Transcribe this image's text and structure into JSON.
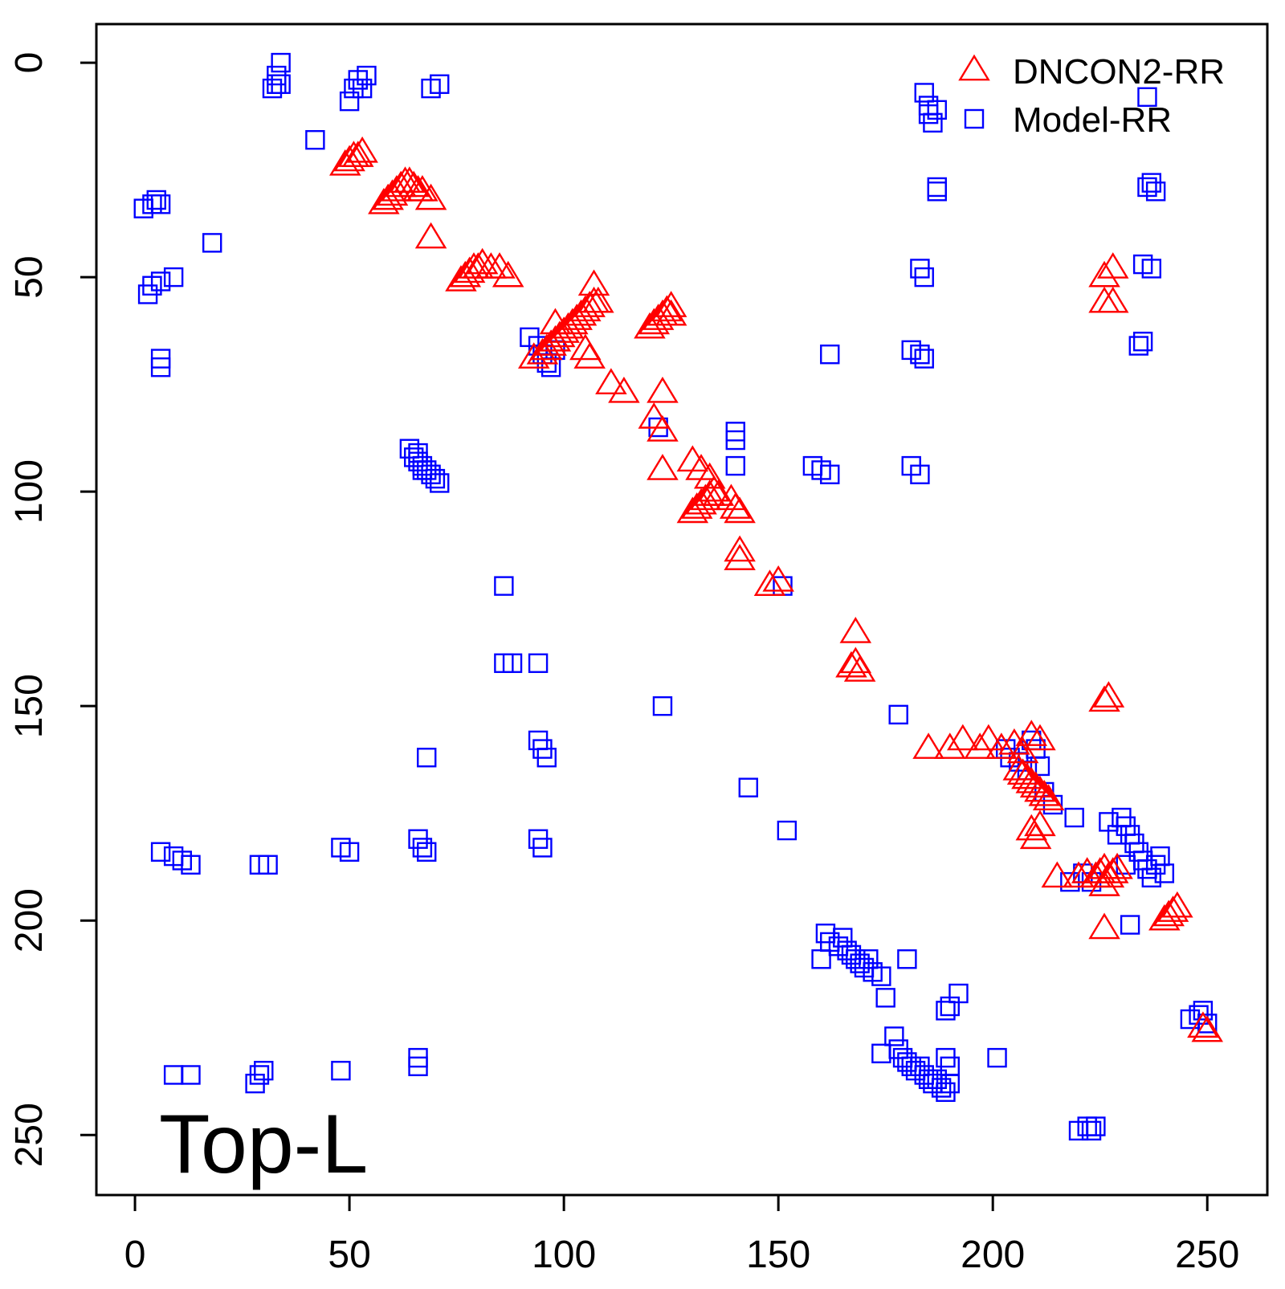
{
  "chart_data": {
    "type": "scatter",
    "title": "",
    "xlabel": "",
    "ylabel": "",
    "panel_label": "Top-L",
    "xlim": [
      -9,
      264
    ],
    "ylim": [
      -9,
      264
    ],
    "y_reversed": true,
    "x_ticks": [
      0,
      50,
      100,
      150,
      200,
      250
    ],
    "y_ticks": [
      0,
      50,
      100,
      150,
      200,
      250
    ],
    "grid": false,
    "legend_position": "top-right",
    "series": [
      {
        "name": "DNCON2-RR",
        "marker": "triangle",
        "color": "#ff0000",
        "points": [
          [
            49,
            24
          ],
          [
            50,
            23
          ],
          [
            51,
            22
          ],
          [
            52,
            22
          ],
          [
            53,
            21
          ],
          [
            58,
            33
          ],
          [
            59,
            32
          ],
          [
            60,
            31
          ],
          [
            61,
            30
          ],
          [
            62,
            29
          ],
          [
            63,
            28
          ],
          [
            64,
            28
          ],
          [
            65,
            29
          ],
          [
            66,
            30
          ],
          [
            67,
            30
          ],
          [
            69,
            32
          ],
          [
            69,
            41
          ],
          [
            76,
            51
          ],
          [
            77,
            50
          ],
          [
            78,
            49
          ],
          [
            79,
            48
          ],
          [
            80,
            48
          ],
          [
            81,
            47
          ],
          [
            83,
            48
          ],
          [
            85,
            48
          ],
          [
            87,
            50
          ],
          [
            93,
            69
          ],
          [
            95,
            68
          ],
          [
            96,
            67
          ],
          [
            97,
            66
          ],
          [
            98,
            65
          ],
          [
            98,
            61
          ],
          [
            99,
            64
          ],
          [
            100,
            63
          ],
          [
            101,
            62
          ],
          [
            102,
            61
          ],
          [
            103,
            60
          ],
          [
            104,
            59
          ],
          [
            105,
            58
          ],
          [
            106,
            57
          ],
          [
            107,
            56
          ],
          [
            107,
            52
          ],
          [
            108,
            56
          ],
          [
            105,
            67
          ],
          [
            106,
            69
          ],
          [
            120,
            62
          ],
          [
            121,
            61
          ],
          [
            122,
            60
          ],
          [
            123,
            59
          ],
          [
            124,
            58
          ],
          [
            125,
            57
          ],
          [
            125,
            59
          ],
          [
            111,
            75
          ],
          [
            114,
            77
          ],
          [
            123,
            77
          ],
          [
            121,
            83
          ],
          [
            123,
            86
          ],
          [
            123,
            95
          ],
          [
            130,
            93
          ],
          [
            132,
            95
          ],
          [
            134,
            97
          ],
          [
            130,
            105
          ],
          [
            131,
            104
          ],
          [
            132,
            103
          ],
          [
            133,
            102
          ],
          [
            134,
            101
          ],
          [
            135,
            100
          ],
          [
            136,
            101
          ],
          [
            139,
            102
          ],
          [
            140,
            104
          ],
          [
            141,
            105
          ],
          [
            141,
            114
          ],
          [
            141,
            116
          ],
          [
            148,
            122
          ],
          [
            150,
            121
          ],
          [
            168,
            133
          ],
          [
            167,
            141
          ],
          [
            168,
            140
          ],
          [
            169,
            142
          ],
          [
            185,
            160
          ],
          [
            190,
            160
          ],
          [
            193,
            158
          ],
          [
            197,
            160
          ],
          [
            199,
            158
          ],
          [
            202,
            160
          ],
          [
            205,
            159
          ],
          [
            207,
            161
          ],
          [
            209,
            157
          ],
          [
            211,
            158
          ],
          [
            206,
            165
          ],
          [
            207,
            166
          ],
          [
            208,
            167
          ],
          [
            209,
            168
          ],
          [
            210,
            169
          ],
          [
            211,
            170
          ],
          [
            212,
            171
          ],
          [
            213,
            172
          ],
          [
            209,
            179
          ],
          [
            210,
            181
          ],
          [
            211,
            178
          ],
          [
            226,
            149
          ],
          [
            227,
            148
          ],
          [
            226,
            50
          ],
          [
            228,
            48
          ],
          [
            226,
            56
          ],
          [
            228,
            56
          ],
          [
            215,
            190
          ],
          [
            220,
            190
          ],
          [
            222,
            189
          ],
          [
            224,
            190
          ],
          [
            225,
            189
          ],
          [
            226,
            188
          ],
          [
            227,
            190
          ],
          [
            228,
            189
          ],
          [
            229,
            188
          ],
          [
            226,
            192
          ],
          [
            226,
            202
          ],
          [
            240,
            200
          ],
          [
            241,
            199
          ],
          [
            242,
            198
          ],
          [
            243,
            197
          ],
          [
            249,
            225
          ],
          [
            250,
            226
          ]
        ]
      },
      {
        "name": "Model-RR",
        "marker": "square",
        "color": "#0000ff",
        "points": [
          [
            33,
            5
          ],
          [
            33,
            3
          ],
          [
            34,
            0
          ],
          [
            34,
            5
          ],
          [
            32,
            6
          ],
          [
            51,
            6
          ],
          [
            50,
            9
          ],
          [
            52,
            4
          ],
          [
            54,
            3
          ],
          [
            53,
            6
          ],
          [
            69,
            6
          ],
          [
            71,
            5
          ],
          [
            42,
            18
          ],
          [
            2,
            34
          ],
          [
            4,
            33
          ],
          [
            5,
            32
          ],
          [
            6,
            33
          ],
          [
            18,
            42
          ],
          [
            3,
            54
          ],
          [
            4,
            52
          ],
          [
            6,
            51
          ],
          [
            9,
            50
          ],
          [
            6,
            69
          ],
          [
            6,
            71
          ],
          [
            64,
            90
          ],
          [
            65,
            92
          ],
          [
            66,
            93
          ],
          [
            67,
            94
          ],
          [
            68,
            95
          ],
          [
            69,
            96
          ],
          [
            70,
            97
          ],
          [
            71,
            98
          ],
          [
            66,
            91
          ],
          [
            67,
            95
          ],
          [
            86,
            122
          ],
          [
            86,
            140
          ],
          [
            88,
            140
          ],
          [
            94,
            140
          ],
          [
            94,
            158
          ],
          [
            95,
            160
          ],
          [
            96,
            162
          ],
          [
            68,
            162
          ],
          [
            92,
            64
          ],
          [
            94,
            66
          ],
          [
            95,
            68
          ],
          [
            96,
            70
          ],
          [
            97,
            71
          ],
          [
            98,
            67
          ],
          [
            122,
            85
          ],
          [
            123,
            150
          ],
          [
            140,
            86
          ],
          [
            140,
            88
          ],
          [
            140,
            94
          ],
          [
            158,
            94
          ],
          [
            160,
            95
          ],
          [
            162,
            96
          ],
          [
            162,
            68
          ],
          [
            151,
            122
          ],
          [
            181,
            67
          ],
          [
            183,
            68
          ],
          [
            184,
            69
          ],
          [
            181,
            94
          ],
          [
            183,
            96
          ],
          [
            183,
            48
          ],
          [
            184,
            50
          ],
          [
            184,
            7
          ],
          [
            185,
            10
          ],
          [
            185,
            12
          ],
          [
            186,
            14
          ],
          [
            187,
            11
          ],
          [
            187,
            29
          ],
          [
            187,
            30
          ],
          [
            236,
            8
          ],
          [
            236,
            29
          ],
          [
            237,
            28
          ],
          [
            238,
            30
          ],
          [
            235,
            47
          ],
          [
            237,
            48
          ],
          [
            235,
            65
          ],
          [
            234,
            66
          ],
          [
            178,
            152
          ],
          [
            143,
            169
          ],
          [
            152,
            179
          ],
          [
            203,
            160
          ],
          [
            204,
            162
          ],
          [
            206,
            163
          ],
          [
            208,
            165
          ],
          [
            209,
            158
          ],
          [
            210,
            160
          ],
          [
            211,
            164
          ],
          [
            212,
            170
          ],
          [
            214,
            173
          ],
          [
            219,
            176
          ],
          [
            221,
            189
          ],
          [
            223,
            191
          ],
          [
            218,
            191
          ],
          [
            230,
            176
          ],
          [
            231,
            178
          ],
          [
            232,
            180
          ],
          [
            233,
            182
          ],
          [
            234,
            184
          ],
          [
            235,
            186
          ],
          [
            236,
            188
          ],
          [
            237,
            190
          ],
          [
            238,
            187
          ],
          [
            239,
            185
          ],
          [
            240,
            189
          ],
          [
            229,
            180
          ],
          [
            231,
            187
          ],
          [
            232,
            201
          ],
          [
            227,
            177
          ],
          [
            6,
            184
          ],
          [
            9,
            185
          ],
          [
            11,
            186
          ],
          [
            13,
            187
          ],
          [
            29,
            187
          ],
          [
            31,
            187
          ],
          [
            48,
            183
          ],
          [
            50,
            184
          ],
          [
            66,
            181
          ],
          [
            67,
            183
          ],
          [
            68,
            184
          ],
          [
            94,
            181
          ],
          [
            95,
            183
          ],
          [
            160,
            209
          ],
          [
            161,
            203
          ],
          [
            162,
            205
          ],
          [
            164,
            206
          ],
          [
            165,
            204
          ],
          [
            166,
            207
          ],
          [
            167,
            208
          ],
          [
            168,
            209
          ],
          [
            169,
            210
          ],
          [
            170,
            211
          ],
          [
            171,
            209
          ],
          [
            172,
            212
          ],
          [
            174,
            213
          ],
          [
            175,
            218
          ],
          [
            180,
            209
          ],
          [
            189,
            221
          ],
          [
            190,
            220
          ],
          [
            192,
            217
          ],
          [
            201,
            232
          ],
          [
            174,
            231
          ],
          [
            177,
            227
          ],
          [
            178,
            230
          ],
          [
            179,
            232
          ],
          [
            180,
            233
          ],
          [
            181,
            234
          ],
          [
            182,
            235
          ],
          [
            183,
            234
          ],
          [
            184,
            236
          ],
          [
            185,
            237
          ],
          [
            186,
            238
          ],
          [
            187,
            237
          ],
          [
            188,
            239
          ],
          [
            189,
            240
          ],
          [
            190,
            238
          ],
          [
            189,
            232
          ],
          [
            190,
            234
          ],
          [
            9,
            236
          ],
          [
            13,
            236
          ],
          [
            28,
            238
          ],
          [
            29,
            236
          ],
          [
            30,
            235
          ],
          [
            48,
            235
          ],
          [
            66,
            234
          ],
          [
            66,
            232
          ],
          [
            220,
            249
          ],
          [
            222,
            248
          ],
          [
            223,
            249
          ],
          [
            224,
            248
          ],
          [
            246,
            223
          ],
          [
            248,
            222
          ],
          [
            249,
            221
          ],
          [
            250,
            224
          ]
        ]
      }
    ]
  }
}
